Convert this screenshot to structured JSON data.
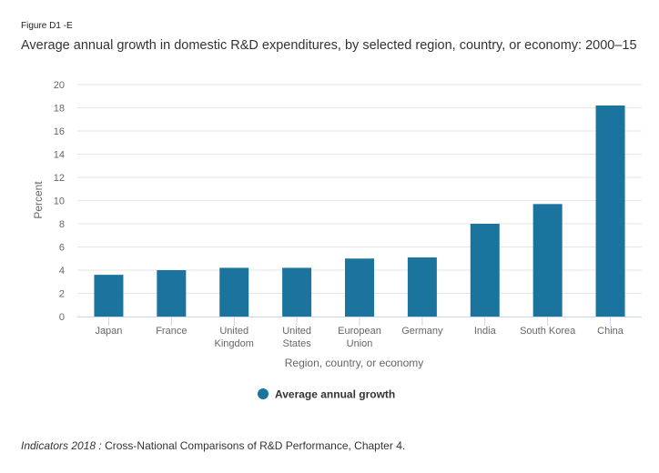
{
  "figure_label": "Figure D1 -E",
  "footer": {
    "source_italic": "Indicators 2018 :",
    "source_text": " Cross-National Comparisons of R&D Performance, Chapter 4."
  },
  "chart_data": {
    "type": "bar",
    "title": "Average annual growth in domestic R&D expenditures, by selected region, country, or economy: 2000–15",
    "xlabel": "Region, country, or economy",
    "ylabel": "Percent",
    "ylim": [
      0,
      20
    ],
    "yticks": [
      0,
      2,
      4,
      6,
      8,
      10,
      12,
      14,
      16,
      18,
      20
    ],
    "grid": true,
    "legend_position": "bottom-center",
    "categories": [
      [
        "Japan"
      ],
      [
        "France"
      ],
      [
        "United",
        "Kingdom"
      ],
      [
        "United",
        "States"
      ],
      [
        "European",
        "Union"
      ],
      [
        "Germany"
      ],
      [
        "India"
      ],
      [
        "South Korea"
      ],
      [
        "China"
      ]
    ],
    "series": [
      {
        "name": "Average annual growth",
        "color": "#1a749e",
        "values": [
          3.6,
          4.0,
          4.2,
          4.2,
          5.0,
          5.1,
          8.0,
          9.7,
          18.2
        ]
      }
    ]
  }
}
